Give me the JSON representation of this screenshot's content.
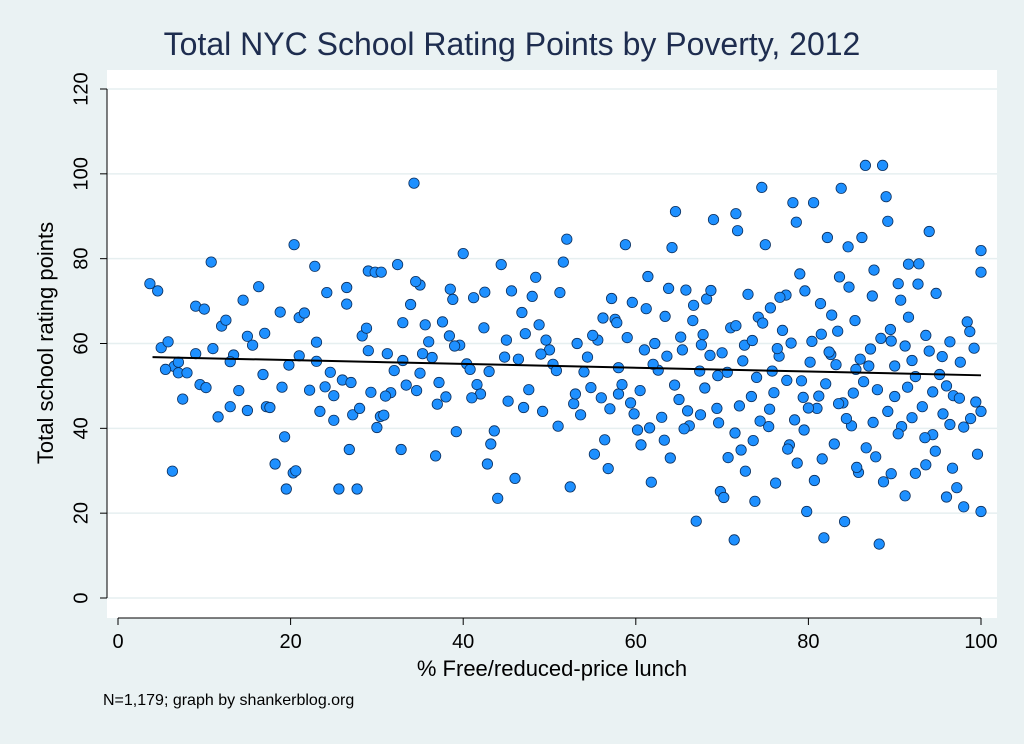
{
  "chart_data": {
    "type": "scatter",
    "title": "Total NYC School Rating Points by Poverty, 2012",
    "xlabel": "% Free/reduced-price lunch",
    "ylabel": "Total school rating points",
    "note": "N=1,179; graph by shankerblog.org",
    "xlim": [
      0,
      100
    ],
    "ylim": [
      0,
      120
    ],
    "x_ticks": [
      0,
      20,
      40,
      60,
      80,
      100
    ],
    "y_ticks": [
      0,
      20,
      40,
      60,
      80,
      100,
      120
    ],
    "grid": "horizontal",
    "fit_line": {
      "x": [
        4,
        100
      ],
      "y": [
        56.8,
        52.5
      ]
    },
    "points": [
      [
        3.7,
        74.1
      ],
      [
        4.6,
        72.4
      ],
      [
        5.0,
        59.0
      ],
      [
        5.8,
        60.4
      ],
      [
        6.3,
        29.9
      ],
      [
        6.5,
        54.6
      ],
      [
        7.0,
        53.1
      ],
      [
        7.5,
        46.9
      ],
      [
        8.0,
        53.1
      ],
      [
        9.0,
        68.8
      ],
      [
        9.5,
        50.3
      ],
      [
        10.0,
        68.1
      ],
      [
        10.2,
        49.6
      ],
      [
        10.8,
        79.2
      ],
      [
        11.6,
        42.7
      ],
      [
        12.0,
        64.1
      ],
      [
        12.5,
        65.5
      ],
      [
        13.0,
        45.1
      ],
      [
        13.4,
        57.3
      ],
      [
        14.0,
        48.9
      ],
      [
        14.5,
        70.2
      ],
      [
        15.0,
        61.7
      ],
      [
        15.6,
        59.6
      ],
      [
        16.3,
        73.4
      ],
      [
        16.8,
        52.7
      ],
      [
        17.2,
        45.1
      ],
      [
        17.6,
        44.9
      ],
      [
        18.2,
        31.6
      ],
      [
        18.8,
        67.4
      ],
      [
        19.3,
        38.0
      ],
      [
        19.5,
        25.7
      ],
      [
        19.8,
        54.9
      ],
      [
        20.3,
        29.5
      ],
      [
        20.6,
        30.0
      ],
      [
        20.4,
        83.3
      ],
      [
        21.0,
        66.1
      ],
      [
        21.6,
        67.2
      ],
      [
        22.2,
        49.0
      ],
      [
        22.8,
        78.2
      ],
      [
        23.0,
        60.3
      ],
      [
        23.4,
        44.0
      ],
      [
        24.0,
        49.8
      ],
      [
        24.2,
        72.0
      ],
      [
        24.6,
        53.2
      ],
      [
        25.0,
        47.7
      ],
      [
        25.6,
        25.7
      ],
      [
        26.0,
        51.4
      ],
      [
        26.5,
        69.3
      ],
      [
        26.8,
        35.0
      ],
      [
        27.2,
        43.2
      ],
      [
        27.7,
        25.7
      ],
      [
        28.0,
        44.7
      ],
      [
        28.3,
        61.8
      ],
      [
        28.8,
        63.6
      ],
      [
        29.0,
        77.1
      ],
      [
        29.3,
        48.5
      ],
      [
        29.8,
        76.8
      ],
      [
        30.0,
        40.2
      ],
      [
        30.4,
        42.8
      ],
      [
        30.8,
        43.1
      ],
      [
        31.2,
        57.6
      ],
      [
        31.6,
        48.4
      ],
      [
        32.0,
        53.6
      ],
      [
        32.4,
        78.6
      ],
      [
        32.8,
        35.0
      ],
      [
        33.0,
        56.0
      ],
      [
        33.4,
        50.2
      ],
      [
        33.9,
        69.2
      ],
      [
        34.3,
        97.8
      ],
      [
        34.6,
        48.9
      ],
      [
        35.0,
        73.8
      ],
      [
        35.3,
        57.6
      ],
      [
        35.6,
        64.4
      ],
      [
        36.0,
        60.4
      ],
      [
        36.4,
        56.7
      ],
      [
        36.8,
        33.5
      ],
      [
        37.2,
        50.8
      ],
      [
        37.6,
        65.1
      ],
      [
        38.0,
        47.4
      ],
      [
        38.4,
        61.8
      ],
      [
        38.8,
        70.4
      ],
      [
        39.2,
        39.2
      ],
      [
        39.6,
        59.6
      ],
      [
        40.0,
        81.2
      ],
      [
        40.4,
        55.2
      ],
      [
        40.8,
        53.9
      ],
      [
        41.2,
        70.8
      ],
      [
        41.6,
        50.3
      ],
      [
        42.0,
        48.1
      ],
      [
        42.4,
        63.7
      ],
      [
        42.8,
        31.6
      ],
      [
        43.2,
        36.3
      ],
      [
        43.6,
        39.4
      ],
      [
        44.0,
        23.5
      ],
      [
        44.4,
        78.6
      ],
      [
        44.8,
        56.8
      ],
      [
        45.2,
        46.4
      ],
      [
        45.6,
        72.4
      ],
      [
        46.0,
        28.2
      ],
      [
        46.4,
        56.3
      ],
      [
        46.8,
        67.3
      ],
      [
        47.2,
        62.3
      ],
      [
        47.6,
        49.1
      ],
      [
        48.0,
        71.1
      ],
      [
        48.4,
        75.6
      ],
      [
        48.8,
        64.4
      ],
      [
        49.2,
        44.0
      ],
      [
        49.6,
        60.8
      ],
      [
        50.0,
        58.5
      ],
      [
        50.4,
        55.1
      ],
      [
        50.8,
        53.6
      ],
      [
        51.2,
        72.0
      ],
      [
        51.6,
        79.2
      ],
      [
        52.0,
        84.6
      ],
      [
        52.4,
        26.2
      ],
      [
        52.8,
        45.8
      ],
      [
        53.2,
        60.0
      ],
      [
        53.6,
        43.2
      ],
      [
        54.0,
        53.3
      ],
      [
        54.4,
        56.8
      ],
      [
        54.8,
        49.6
      ],
      [
        55.2,
        33.9
      ],
      [
        55.6,
        60.8
      ],
      [
        56.0,
        47.2
      ],
      [
        56.4,
        37.3
      ],
      [
        56.8,
        30.5
      ],
      [
        57.2,
        70.6
      ],
      [
        57.6,
        65.7
      ],
      [
        58.0,
        48.1
      ],
      [
        58.4,
        50.3
      ],
      [
        58.8,
        83.3
      ],
      [
        59.0,
        61.4
      ],
      [
        59.4,
        46.0
      ],
      [
        59.8,
        43.4
      ],
      [
        60.2,
        39.6
      ],
      [
        60.6,
        36.1
      ],
      [
        61.0,
        58.5
      ],
      [
        61.4,
        75.8
      ],
      [
        61.8,
        27.3
      ],
      [
        62.2,
        60.0
      ],
      [
        62.6,
        53.7
      ],
      [
        63.0,
        42.6
      ],
      [
        63.4,
        66.4
      ],
      [
        63.8,
        73.0
      ],
      [
        64.2,
        82.6
      ],
      [
        64.6,
        91.1
      ],
      [
        65.0,
        46.8
      ],
      [
        65.4,
        58.5
      ],
      [
        65.8,
        72.6
      ],
      [
        66.2,
        40.6
      ],
      [
        66.6,
        65.4
      ],
      [
        67.0,
        18.1
      ],
      [
        67.4,
        53.5
      ],
      [
        67.8,
        62.1
      ],
      [
        68.2,
        70.5
      ],
      [
        68.6,
        57.2
      ],
      [
        69.0,
        89.2
      ],
      [
        69.4,
        44.7
      ],
      [
        69.8,
        25.1
      ],
      [
        70.2,
        23.7
      ],
      [
        70.6,
        53.2
      ],
      [
        71.0,
        63.7
      ],
      [
        71.4,
        13.7
      ],
      [
        71.6,
        90.6
      ],
      [
        71.8,
        86.6
      ],
      [
        72.2,
        34.9
      ],
      [
        72.6,
        59.6
      ],
      [
        73.0,
        71.6
      ],
      [
        73.4,
        47.5
      ],
      [
        73.8,
        22.8
      ],
      [
        74.2,
        66.2
      ],
      [
        74.6,
        96.8
      ],
      [
        75.0,
        83.3
      ],
      [
        75.4,
        40.4
      ],
      [
        75.8,
        53.5
      ],
      [
        76.2,
        27.1
      ],
      [
        76.6,
        57.0
      ],
      [
        77.0,
        63.1
      ],
      [
        77.4,
        71.4
      ],
      [
        77.8,
        36.1
      ],
      [
        78.2,
        93.2
      ],
      [
        78.6,
        88.6
      ],
      [
        79.0,
        76.4
      ],
      [
        79.4,
        47.3
      ],
      [
        79.8,
        20.4
      ],
      [
        80.2,
        55.6
      ],
      [
        80.6,
        93.2
      ],
      [
        81.0,
        44.7
      ],
      [
        81.4,
        69.4
      ],
      [
        81.8,
        14.2
      ],
      [
        82.2,
        85.0
      ],
      [
        82.6,
        57.4
      ],
      [
        83.0,
        36.3
      ],
      [
        83.4,
        62.9
      ],
      [
        83.8,
        96.6
      ],
      [
        84.2,
        18.0
      ],
      [
        84.6,
        82.8
      ],
      [
        85.0,
        40.6
      ],
      [
        85.4,
        65.4
      ],
      [
        85.8,
        29.6
      ],
      [
        86.2,
        85.0
      ],
      [
        86.6,
        102.0
      ],
      [
        87.0,
        54.7
      ],
      [
        87.4,
        71.2
      ],
      [
        87.8,
        33.3
      ],
      [
        88.2,
        12.7
      ],
      [
        88.6,
        102.0
      ],
      [
        89.0,
        94.6
      ],
      [
        89.2,
        88.8
      ],
      [
        89.6,
        60.6
      ],
      [
        90.0,
        47.5
      ],
      [
        90.4,
        74.1
      ],
      [
        90.8,
        40.4
      ],
      [
        91.2,
        24.1
      ],
      [
        91.6,
        66.2
      ],
      [
        92.0,
        56.0
      ],
      [
        92.4,
        29.4
      ],
      [
        92.8,
        78.8
      ],
      [
        93.2,
        45.1
      ],
      [
        93.6,
        61.9
      ],
      [
        94.0,
        86.4
      ],
      [
        94.4,
        38.5
      ],
      [
        94.8,
        71.8
      ],
      [
        95.2,
        52.7
      ],
      [
        95.6,
        43.4
      ],
      [
        96.0,
        23.8
      ],
      [
        96.4,
        60.4
      ],
      [
        96.8,
        47.7
      ],
      [
        97.2,
        26.0
      ],
      [
        97.6,
        55.6
      ],
      [
        98.0,
        21.5
      ],
      [
        98.4,
        65.1
      ],
      [
        98.8,
        42.3
      ],
      [
        99.2,
        58.9
      ],
      [
        99.6,
        33.9
      ],
      [
        100.0,
        81.9
      ],
      [
        100.0,
        20.4
      ],
      [
        100.0,
        44.0
      ],
      [
        100.0,
        76.8
      ],
      [
        99.4,
        46.2
      ],
      [
        64.5,
        50.2
      ],
      [
        66.0,
        44.1
      ],
      [
        68.0,
        49.5
      ],
      [
        70.0,
        57.8
      ],
      [
        72.0,
        45.3
      ],
      [
        74.0,
        52.0
      ],
      [
        76.0,
        48.4
      ],
      [
        78.0,
        60.1
      ],
      [
        80.0,
        44.8
      ],
      [
        82.0,
        50.5
      ],
      [
        84.0,
        46.0
      ],
      [
        86.0,
        56.3
      ],
      [
        88.0,
        49.1
      ],
      [
        90.0,
        54.7
      ],
      [
        92.0,
        42.5
      ],
      [
        94.0,
        58.2
      ],
      [
        96.0,
        50.0
      ],
      [
        98.0,
        40.3
      ],
      [
        62.0,
        55.1
      ],
      [
        60.5,
        48.9
      ],
      [
        65.2,
        61.5
      ],
      [
        67.5,
        43.2
      ],
      [
        69.5,
        52.4
      ],
      [
        71.5,
        38.9
      ],
      [
        73.5,
        60.7
      ],
      [
        75.5,
        44.5
      ],
      [
        77.5,
        51.3
      ],
      [
        79.5,
        39.6
      ],
      [
        81.5,
        62.2
      ],
      [
        83.5,
        45.8
      ],
      [
        85.5,
        53.9
      ],
      [
        87.5,
        41.4
      ],
      [
        89.5,
        63.3
      ],
      [
        91.5,
        49.7
      ],
      [
        93.5,
        37.8
      ],
      [
        95.5,
        56.9
      ],
      [
        97.5,
        47.1
      ],
      [
        63.3,
        37.2
      ],
      [
        66.7,
        69.0
      ],
      [
        70.7,
        33.1
      ],
      [
        74.7,
        64.8
      ],
      [
        78.7,
        31.8
      ],
      [
        82.7,
        66.7
      ],
      [
        86.7,
        35.4
      ],
      [
        90.7,
        70.2
      ],
      [
        94.7,
        34.6
      ],
      [
        98.7,
        62.8
      ],
      [
        61.2,
        68.2
      ],
      [
        64.0,
        33.0
      ],
      [
        68.7,
        72.5
      ],
      [
        72.7,
        29.9
      ],
      [
        76.7,
        70.9
      ],
      [
        80.7,
        27.7
      ],
      [
        84.7,
        73.3
      ],
      [
        88.7,
        27.4
      ],
      [
        92.7,
        74.0
      ],
      [
        96.7,
        30.6
      ],
      [
        79.2,
        51.2
      ],
      [
        81.2,
        47.6
      ],
      [
        83.2,
        55.0
      ],
      [
        85.2,
        48.3
      ],
      [
        87.2,
        58.7
      ],
      [
        89.2,
        44.0
      ],
      [
        91.2,
        59.4
      ],
      [
        86.4,
        51.0
      ],
      [
        84.4,
        42.3
      ],
      [
        82.4,
        58.0
      ],
      [
        80.4,
        60.5
      ],
      [
        78.4,
        42.0
      ],
      [
        76.4,
        58.8
      ],
      [
        74.4,
        41.7
      ],
      [
        72.4,
        55.9
      ],
      [
        88.4,
        61.2
      ],
      [
        90.4,
        38.7
      ],
      [
        92.4,
        52.2
      ],
      [
        94.4,
        48.6
      ],
      [
        96.4,
        40.9
      ],
      [
        58.0,
        54.3
      ],
      [
        57.0,
        44.6
      ],
      [
        55.0,
        61.9
      ],
      [
        53.0,
        48.1
      ],
      [
        51.0,
        40.5
      ],
      [
        49.0,
        57.5
      ],
      [
        47.0,
        44.9
      ],
      [
        45.0,
        60.8
      ],
      [
        43.0,
        53.4
      ],
      [
        41.0,
        47.2
      ],
      [
        39.0,
        59.4
      ],
      [
        37.0,
        45.7
      ],
      [
        35.0,
        53.0
      ],
      [
        33.0,
        64.9
      ],
      [
        31.0,
        47.6
      ],
      [
        29.0,
        58.3
      ],
      [
        27.0,
        50.8
      ],
      [
        25.0,
        41.9
      ],
      [
        23.0,
        55.8
      ],
      [
        21.0,
        57.1
      ],
      [
        19.0,
        49.7
      ],
      [
        17.0,
        62.4
      ],
      [
        15.0,
        44.2
      ],
      [
        13.0,
        55.7
      ],
      [
        11.0,
        58.8
      ],
      [
        9.0,
        57.6
      ],
      [
        7.0,
        55.6
      ],
      [
        5.5,
        53.9
      ],
      [
        42.5,
        72.1
      ],
      [
        38.5,
        72.8
      ],
      [
        34.5,
        74.6
      ],
      [
        30.5,
        76.8
      ],
      [
        26.5,
        73.2
      ],
      [
        59.6,
        69.7
      ],
      [
        57.8,
        64.9
      ],
      [
        56.2,
        66.0
      ],
      [
        61.6,
        40.1
      ],
      [
        63.6,
        57.0
      ],
      [
        65.6,
        39.9
      ],
      [
        67.6,
        59.7
      ],
      [
        69.6,
        41.3
      ],
      [
        71.6,
        64.2
      ],
      [
        73.6,
        37.1
      ],
      [
        75.6,
        68.4
      ],
      [
        77.6,
        35.1
      ],
      [
        79.6,
        72.4
      ],
      [
        81.6,
        32.8
      ],
      [
        83.6,
        75.7
      ],
      [
        85.6,
        30.8
      ],
      [
        87.6,
        77.3
      ],
      [
        89.6,
        29.3
      ],
      [
        91.6,
        78.7
      ],
      [
        93.6,
        31.4
      ]
    ]
  }
}
